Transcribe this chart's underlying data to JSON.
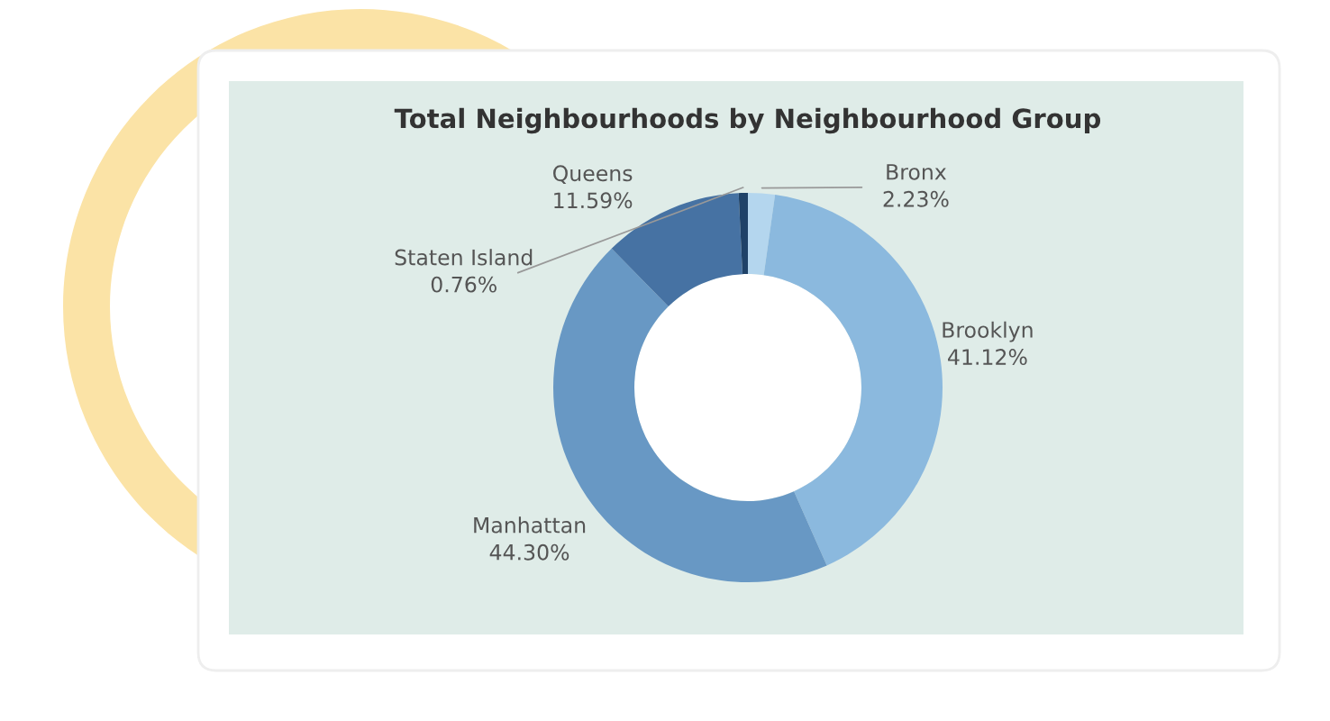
{
  "chart_data": {
    "type": "donut",
    "title": "Total Neighbourhoods by Neighbourhood Group",
    "categories": [
      "Bronx",
      "Brooklyn",
      "Manhattan",
      "Queens",
      "Staten Island"
    ],
    "values": [
      2.23,
      41.12,
      44.3,
      11.59,
      0.76
    ],
    "value_labels": [
      "2.23%",
      "41.12%",
      "44.30%",
      "11.59%",
      "0.76%"
    ],
    "colors": [
      "#b4d6ee",
      "#8bb9de",
      "#6898c4",
      "#4672a3",
      "#1f4268"
    ]
  }
}
